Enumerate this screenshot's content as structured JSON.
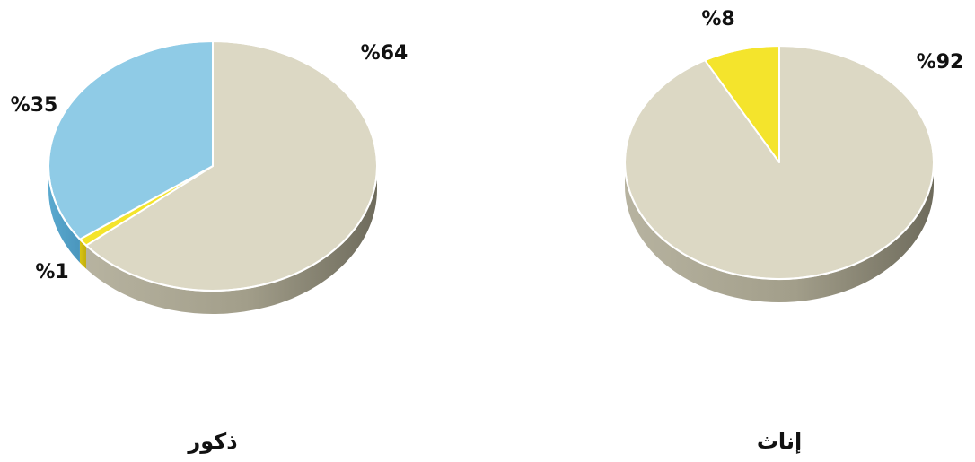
{
  "chart_data": [
    {
      "type": "pie",
      "title": "ذكور",
      "slices": [
        {
          "value": 64,
          "label": "%64",
          "color": "#dcd8c4"
        },
        {
          "value": 1,
          "label": "%1",
          "color": "#f4e42c"
        },
        {
          "value": 35,
          "label": "%35",
          "color": "#8fcbe6"
        }
      ]
    },
    {
      "type": "pie",
      "title": "إناث",
      "slices": [
        {
          "value": 92,
          "label": "%92",
          "color": "#dcd8c4"
        },
        {
          "value": 8,
          "label": "%8",
          "color": "#f4e42c"
        }
      ]
    }
  ]
}
